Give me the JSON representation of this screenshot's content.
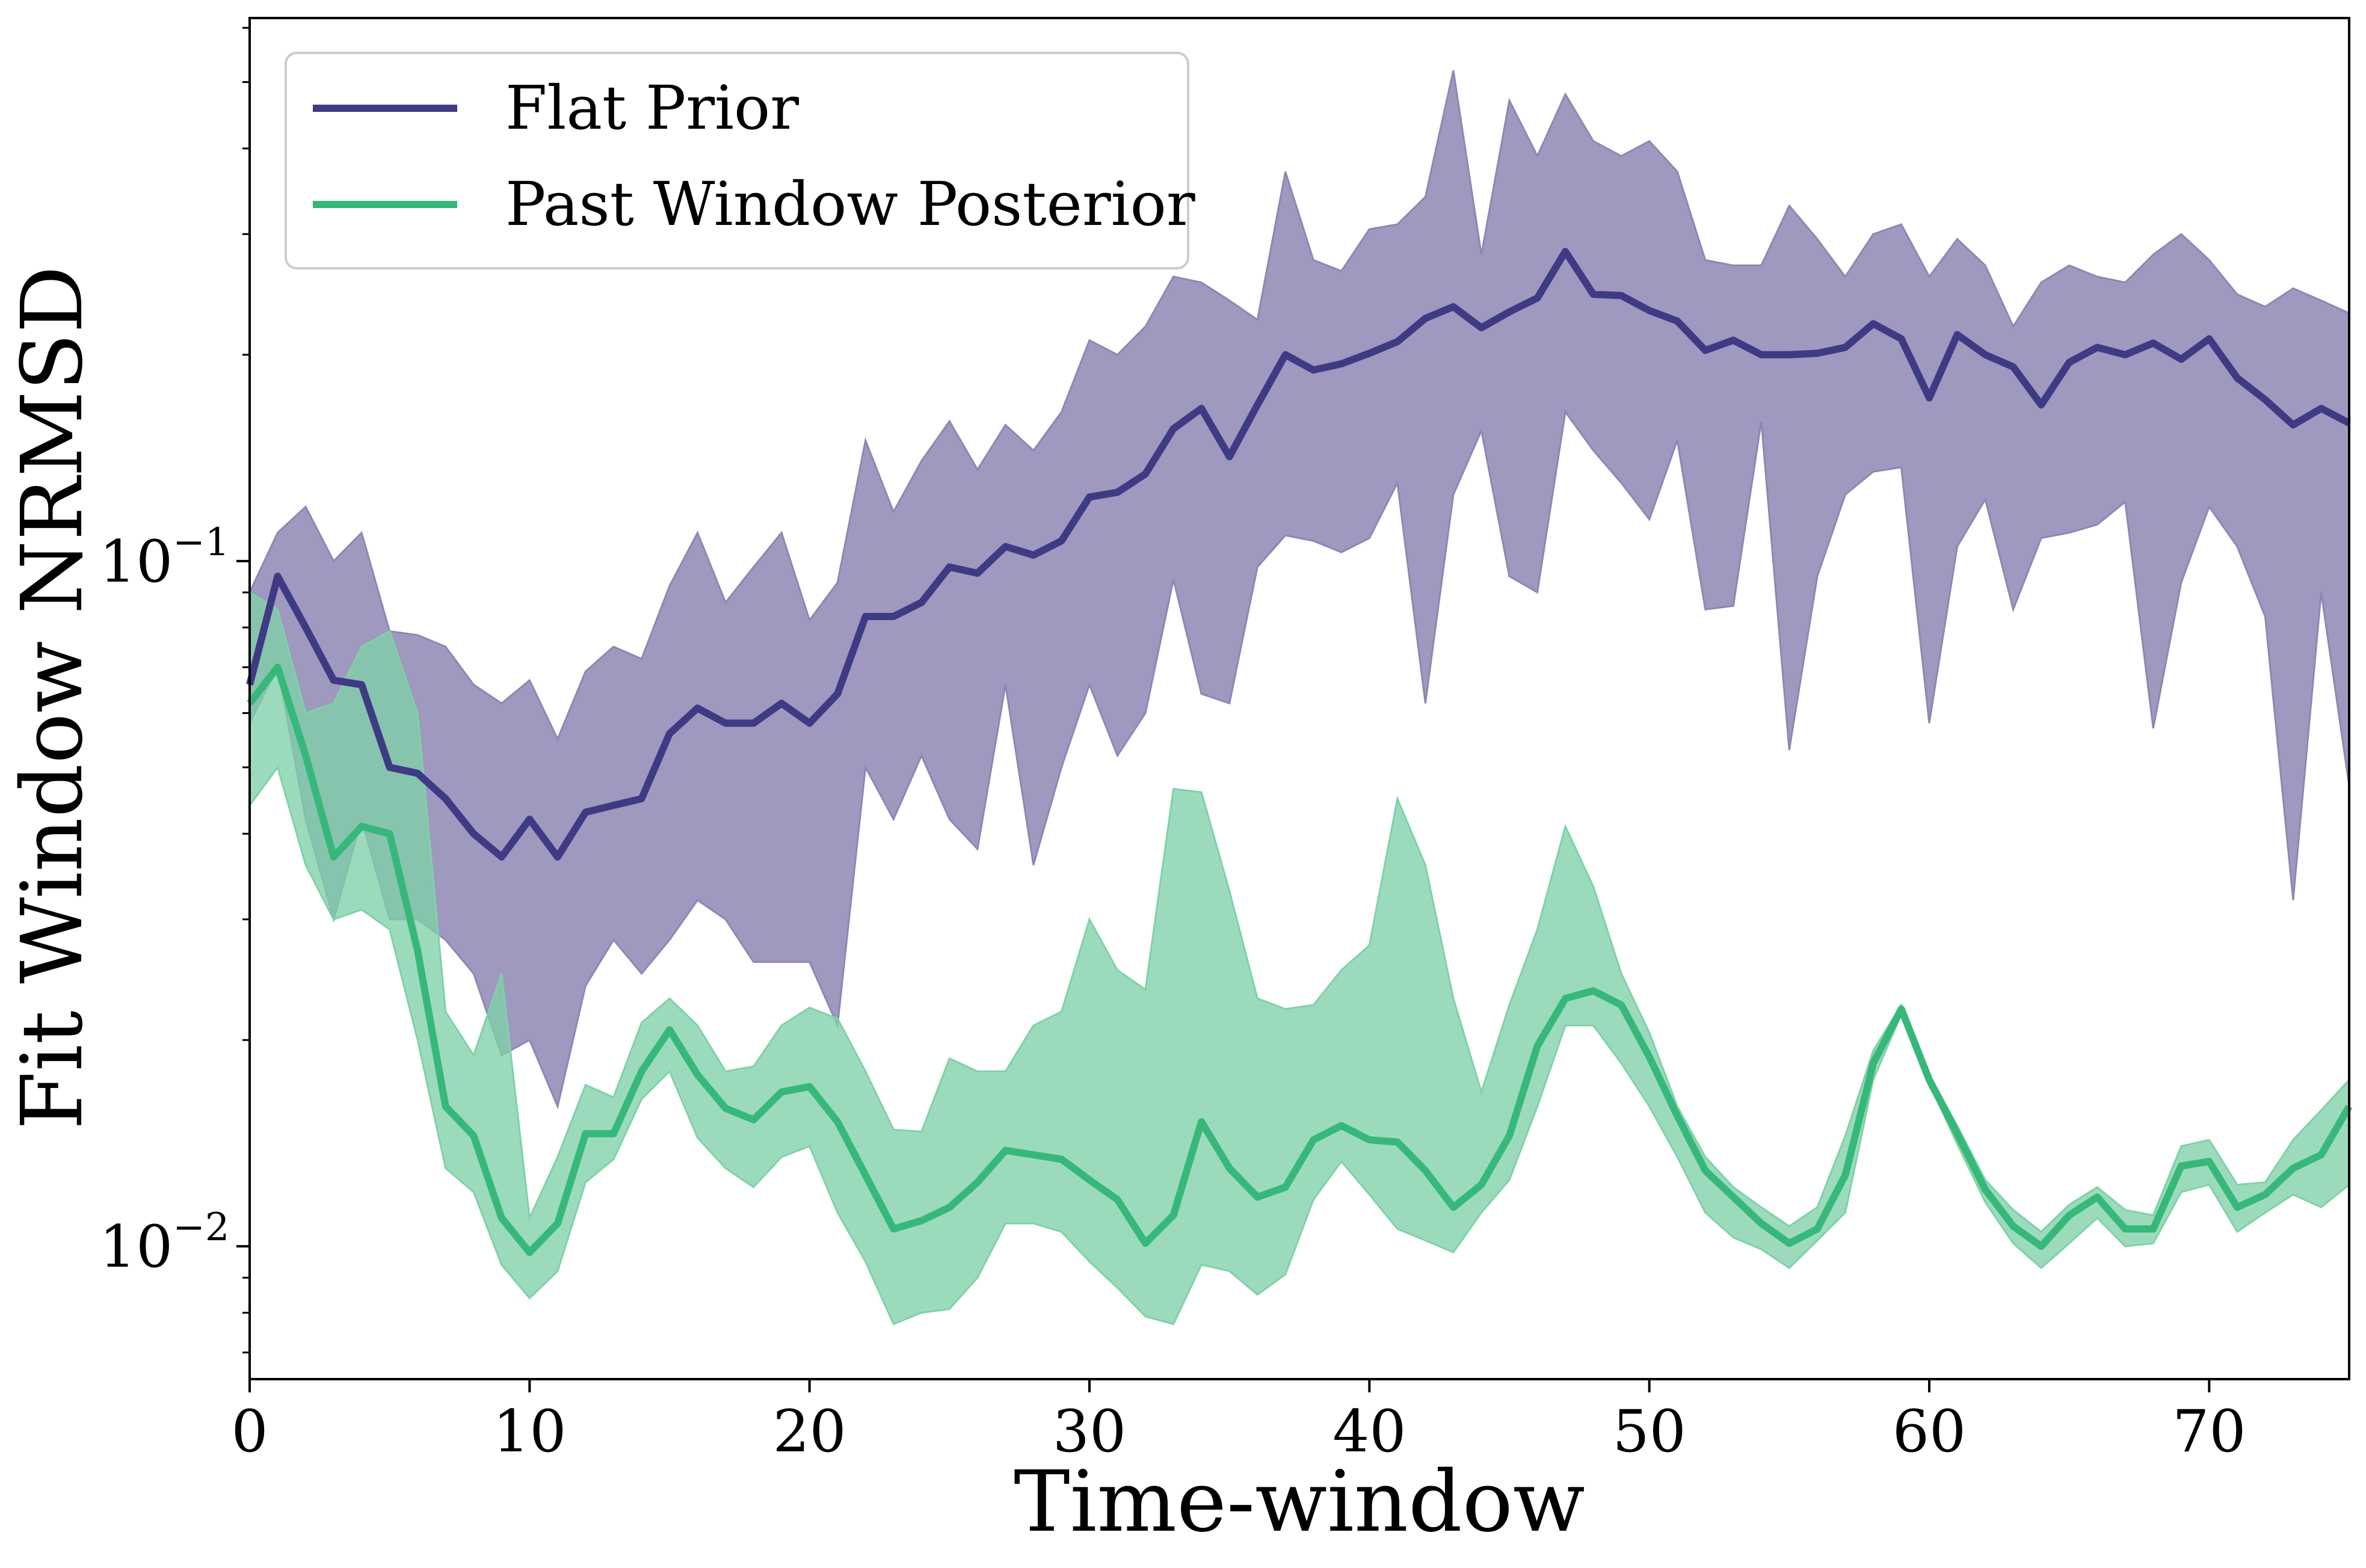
{
  "chart_data": {
    "type": "line",
    "xlabel": "Time-window",
    "ylabel": "Fit Window NRMSD",
    "xlim": [
      0,
      75
    ],
    "ylim": [
      0.0064,
      0.62
    ],
    "yscale": "log",
    "grid": false,
    "legend_position": "top-left",
    "x_ticks": [
      0,
      10,
      20,
      30,
      40,
      50,
      60,
      70
    ],
    "x_tick_labels": [
      "0",
      "10",
      "20",
      "30",
      "40",
      "50",
      "60",
      "70"
    ],
    "y_ticks": [
      {
        "value": 0.1,
        "base": "10",
        "exponent": "−1"
      },
      {
        "value": 0.01,
        "base": "10",
        "exponent": "−2"
      }
    ],
    "series": [
      {
        "name": "Flat Prior",
        "color": "#3f3a84",
        "band_color": "#8e86b4",
        "x": [
          0,
          1,
          2,
          3,
          4,
          5,
          6,
          7,
          8,
          9,
          10,
          11,
          12,
          13,
          14,
          15,
          16,
          17,
          18,
          19,
          20,
          21,
          22,
          23,
          24,
          25,
          26,
          27,
          28,
          29,
          30,
          31,
          32,
          33,
          34,
          35,
          36,
          37,
          38,
          39,
          40,
          41,
          42,
          43,
          44,
          45,
          46,
          47,
          48,
          49,
          50,
          51,
          52,
          53,
          54,
          55,
          56,
          57,
          58,
          59,
          60,
          61,
          62,
          63,
          64,
          65,
          66,
          67,
          68,
          69,
          70,
          71,
          72,
          73,
          74,
          75
        ],
        "median": [
          0.066,
          0.095,
          0.08,
          0.067,
          0.066,
          0.05,
          0.049,
          0.045,
          0.04,
          0.037,
          0.042,
          0.037,
          0.043,
          0.044,
          0.045,
          0.056,
          0.061,
          0.058,
          0.058,
          0.062,
          0.058,
          0.064,
          0.083,
          0.083,
          0.087,
          0.098,
          0.096,
          0.105,
          0.102,
          0.107,
          0.124,
          0.126,
          0.134,
          0.156,
          0.167,
          0.142,
          0.169,
          0.2,
          0.19,
          0.194,
          0.201,
          0.209,
          0.226,
          0.235,
          0.219,
          0.231,
          0.242,
          0.283,
          0.245,
          0.244,
          0.232,
          0.224,
          0.203,
          0.21,
          0.2,
          0.2,
          0.201,
          0.205,
          0.222,
          0.211,
          0.173,
          0.214,
          0.2,
          0.192,
          0.169,
          0.195,
          0.205,
          0.2,
          0.208,
          0.197,
          0.211,
          0.185,
          0.172,
          0.158,
          0.167,
          0.159
        ],
        "upper": [
          0.09,
          0.11,
          0.12,
          0.1,
          0.11,
          0.079,
          0.078,
          0.075,
          0.066,
          0.062,
          0.067,
          0.055,
          0.069,
          0.075,
          0.072,
          0.092,
          0.11,
          0.087,
          0.098,
          0.11,
          0.082,
          0.093,
          0.15,
          0.118,
          0.14,
          0.16,
          0.136,
          0.158,
          0.145,
          0.165,
          0.21,
          0.2,
          0.22,
          0.26,
          0.255,
          0.24,
          0.225,
          0.37,
          0.275,
          0.265,
          0.305,
          0.31,
          0.34,
          0.52,
          0.28,
          0.47,
          0.39,
          0.48,
          0.41,
          0.39,
          0.41,
          0.37,
          0.275,
          0.27,
          0.27,
          0.33,
          0.295,
          0.26,
          0.3,
          0.31,
          0.26,
          0.295,
          0.27,
          0.22,
          0.255,
          0.27,
          0.26,
          0.255,
          0.28,
          0.3,
          0.275,
          0.245,
          0.235,
          0.25,
          0.24,
          0.23
        ],
        "lower": [
          0.058,
          0.07,
          0.042,
          0.03,
          0.042,
          0.03,
          0.03,
          0.028,
          0.025,
          0.019,
          0.02,
          0.016,
          0.024,
          0.028,
          0.025,
          0.028,
          0.032,
          0.03,
          0.026,
          0.026,
          0.026,
          0.021,
          0.05,
          0.042,
          0.052,
          0.042,
          0.038,
          0.066,
          0.036,
          0.05,
          0.066,
          0.052,
          0.06,
          0.094,
          0.064,
          0.062,
          0.098,
          0.109,
          0.107,
          0.103,
          0.108,
          0.13,
          0.062,
          0.125,
          0.155,
          0.095,
          0.09,
          0.165,
          0.145,
          0.13,
          0.115,
          0.15,
          0.085,
          0.086,
          0.16,
          0.053,
          0.095,
          0.125,
          0.135,
          0.137,
          0.058,
          0.105,
          0.123,
          0.085,
          0.108,
          0.11,
          0.113,
          0.122,
          0.057,
          0.093,
          0.12,
          0.105,
          0.083,
          0.032,
          0.09,
          0.047
        ]
      },
      {
        "name": "Past Window Posterior",
        "color": "#36b87a",
        "band_color": "#7fd1a8",
        "x": [
          0,
          1,
          2,
          3,
          4,
          5,
          6,
          7,
          8,
          9,
          10,
          11,
          12,
          13,
          14,
          15,
          16,
          17,
          18,
          19,
          20,
          21,
          22,
          23,
          24,
          25,
          26,
          27,
          28,
          29,
          30,
          31,
          32,
          33,
          34,
          35,
          36,
          37,
          38,
          39,
          40,
          41,
          42,
          43,
          44,
          45,
          46,
          47,
          48,
          49,
          50,
          51,
          52,
          53,
          54,
          55,
          56,
          57,
          58,
          59,
          60,
          61,
          62,
          63,
          64,
          65,
          66,
          67,
          68,
          69,
          70,
          71,
          72,
          73,
          74,
          75
        ],
        "median": [
          0.062,
          0.07,
          0.052,
          0.037,
          0.041,
          0.04,
          0.027,
          0.016,
          0.0145,
          0.011,
          0.0098,
          0.0108,
          0.0146,
          0.0146,
          0.018,
          0.0207,
          0.0178,
          0.0159,
          0.0153,
          0.0168,
          0.0171,
          0.0152,
          0.0127,
          0.0106,
          0.0109,
          0.0114,
          0.0124,
          0.0138,
          0.0136,
          0.0134,
          0.0125,
          0.0117,
          0.0101,
          0.0111,
          0.0152,
          0.013,
          0.0118,
          0.0122,
          0.0143,
          0.015,
          0.0143,
          0.0142,
          0.0129,
          0.0114,
          0.0123,
          0.0145,
          0.0196,
          0.023,
          0.0236,
          0.0225,
          0.0189,
          0.0155,
          0.0129,
          0.0118,
          0.0108,
          0.0101,
          0.0106,
          0.0127,
          0.0185,
          0.0222,
          0.0175,
          0.0146,
          0.0121,
          0.0107,
          0.01,
          0.0111,
          0.0118,
          0.0106,
          0.0106,
          0.0131,
          0.0133,
          0.0114,
          0.0119,
          0.013,
          0.0136,
          0.016
        ],
        "upper": [
          0.09,
          0.085,
          0.06,
          0.062,
          0.075,
          0.079,
          0.06,
          0.022,
          0.019,
          0.025,
          0.011,
          0.0135,
          0.0172,
          0.0165,
          0.0212,
          0.023,
          0.021,
          0.018,
          0.0183,
          0.021,
          0.0223,
          0.0215,
          0.018,
          0.0148,
          0.0147,
          0.0188,
          0.018,
          0.018,
          0.021,
          0.022,
          0.03,
          0.0253,
          0.0237,
          0.0465,
          0.046,
          0.033,
          0.023,
          0.0222,
          0.0225,
          0.0253,
          0.0275,
          0.045,
          0.036,
          0.023,
          0.0168,
          0.0225,
          0.029,
          0.041,
          0.0335,
          0.025,
          0.0205,
          0.016,
          0.0135,
          0.0122,
          0.0114,
          0.0107,
          0.0114,
          0.0145,
          0.0193,
          0.0225,
          0.0178,
          0.015,
          0.0125,
          0.0113,
          0.0105,
          0.0115,
          0.0122,
          0.0113,
          0.0111,
          0.014,
          0.0143,
          0.0123,
          0.0124,
          0.0143,
          0.0158,
          0.0175
        ],
        "lower": [
          0.044,
          0.05,
          0.036,
          0.03,
          0.031,
          0.029,
          0.02,
          0.013,
          0.012,
          0.0094,
          0.0084,
          0.0092,
          0.0124,
          0.0134,
          0.0164,
          0.018,
          0.0144,
          0.013,
          0.0122,
          0.0135,
          0.014,
          0.0112,
          0.0095,
          0.0077,
          0.008,
          0.0081,
          0.009,
          0.0108,
          0.0108,
          0.0105,
          0.0095,
          0.0087,
          0.0079,
          0.0077,
          0.0094,
          0.0092,
          0.0085,
          0.0091,
          0.0117,
          0.0133,
          0.0119,
          0.0106,
          0.0102,
          0.0098,
          0.0112,
          0.0125,
          0.016,
          0.021,
          0.021,
          0.0185,
          0.016,
          0.0135,
          0.0112,
          0.0103,
          0.0099,
          0.0093,
          0.0102,
          0.0112,
          0.0175,
          0.0218,
          0.0173,
          0.0141,
          0.0116,
          0.0101,
          0.0093,
          0.0101,
          0.011,
          0.01,
          0.0101,
          0.012,
          0.0123,
          0.0105,
          0.0112,
          0.0119,
          0.0114,
          0.0123
        ]
      }
    ]
  }
}
